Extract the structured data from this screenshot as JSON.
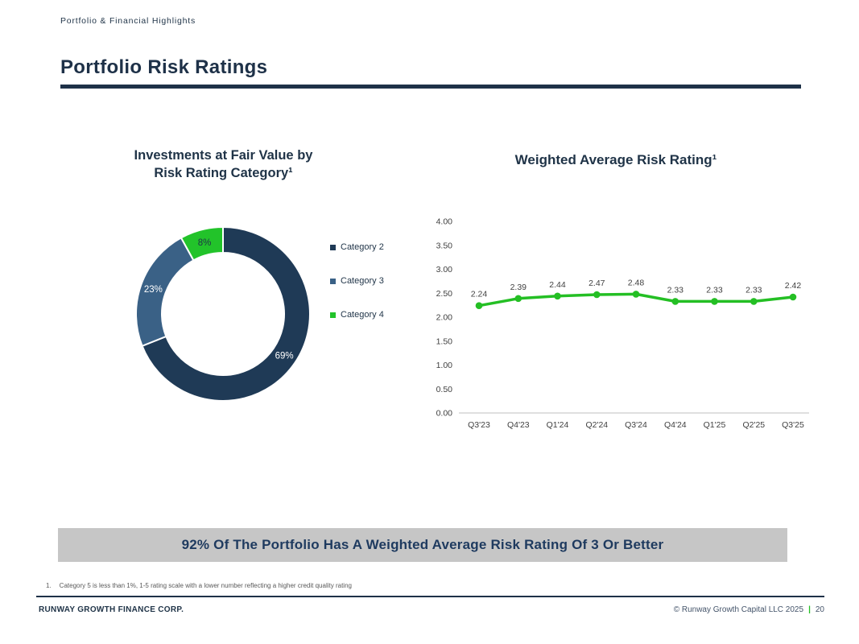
{
  "header": {
    "eyebrow": "Portfolio & Financial Highlights",
    "title": "Portfolio Risk Ratings"
  },
  "donut_section": {
    "title": "Investments at Fair Value by\nRisk Rating Category¹"
  },
  "line_section": {
    "title": "Weighted Average Risk Rating¹"
  },
  "chart_data": [
    {
      "type": "pie",
      "variant": "donut",
      "title": "Investments at Fair Value by Risk Rating Category¹",
      "legend_position": "right",
      "slices": [
        {
          "label": "Category 2",
          "value": 69,
          "display": "69%",
          "color": "#1f3a56",
          "label_color": "#ffffff"
        },
        {
          "label": "Category 3",
          "value": 23,
          "display": "23%",
          "color": "#3a6186",
          "label_color": "#ffffff"
        },
        {
          "label": "Category 4",
          "value": 8,
          "display": "8%",
          "color": "#22c32a",
          "label_color": "#1f3347"
        }
      ]
    },
    {
      "type": "line",
      "title": "Weighted Average Risk Rating¹",
      "categories": [
        "Q3'23",
        "Q4'23",
        "Q1'24",
        "Q2'24",
        "Q3'24",
        "Q4'24",
        "Q1'25",
        "Q2'25",
        "Q3'25"
      ],
      "values": [
        2.24,
        2.39,
        2.44,
        2.47,
        2.48,
        2.33,
        2.33,
        2.33,
        2.42
      ],
      "ylim": [
        0,
        4
      ],
      "ytick_step": 0.5,
      "grid": false,
      "legend": "none",
      "line_color": "#24bf24",
      "marker": "circle",
      "data_label_color": "#404040",
      "tick_label_color": "#404040",
      "axis_color": "#bfbfbf"
    }
  ],
  "banner": {
    "text": "92% Of The Portfolio Has A Weighted Average Risk Rating Of 3 Or Better"
  },
  "footnote": {
    "number": "1.",
    "text": "Category 5 is less than 1%, 1-5 rating scale with a lower number reflecting a higher credit quality rating"
  },
  "footer": {
    "company": "RUNWAY GROWTH FINANCE CORP.",
    "copyright": "© Runway Growth Capital LLC 2025",
    "divider": "|",
    "page": "20"
  }
}
